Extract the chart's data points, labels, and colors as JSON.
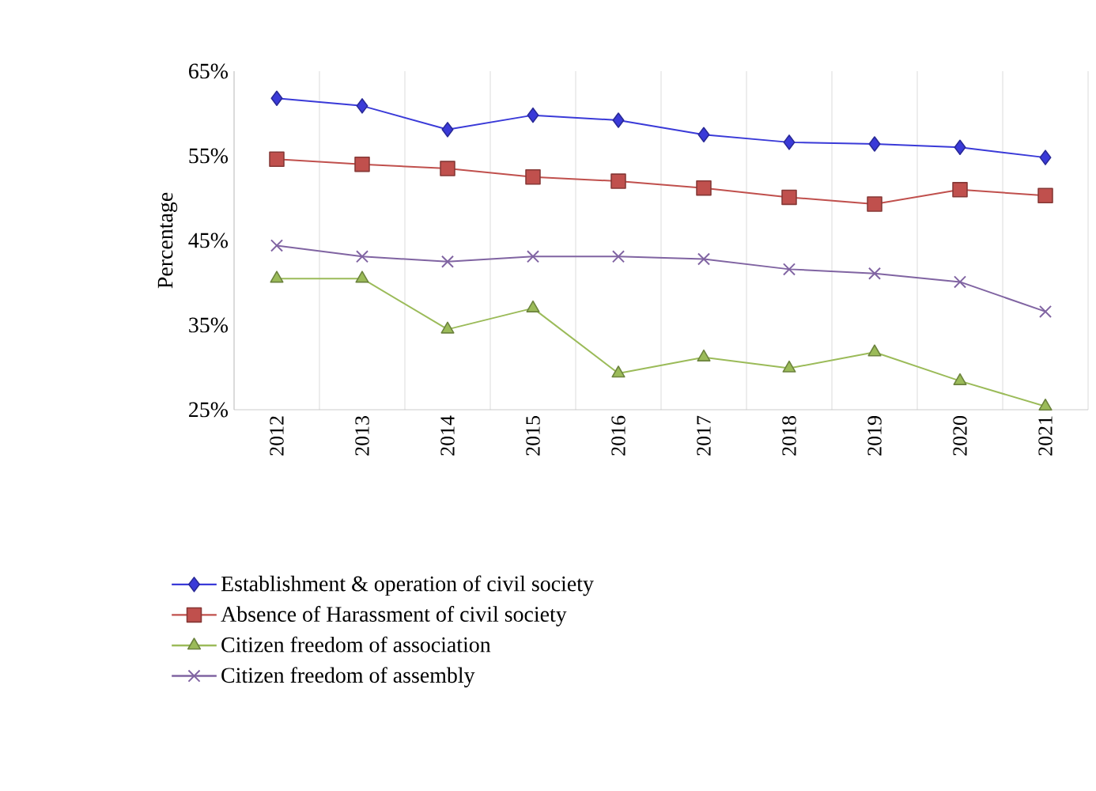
{
  "chart_data": {
    "type": "line",
    "ylabel": "Percentage",
    "categories": [
      "2012",
      "2013",
      "2014",
      "2015",
      "2016",
      "2017",
      "2018",
      "2019",
      "2020",
      "2021"
    ],
    "ylim": [
      25,
      65
    ],
    "yticks": [
      {
        "value": 25,
        "label": "25%"
      },
      {
        "value": 35,
        "label": "35%"
      },
      {
        "value": 45,
        "label": "45%"
      },
      {
        "value": 55,
        "label": "55%"
      },
      {
        "value": 65,
        "label": "65%"
      }
    ],
    "grid": "x",
    "legend": "bottom",
    "series": [
      {
        "name": "Establishment & operation of civil society",
        "color": "#3a3ad8",
        "marker": "diamond",
        "values": [
          61.8,
          60.9,
          58.1,
          59.8,
          59.2,
          57.5,
          56.6,
          56.4,
          56.0,
          54.8
        ]
      },
      {
        "name": "Absence of Harassment of civil society",
        "color": "#c0504d",
        "marker": "square",
        "values": [
          54.6,
          54.0,
          53.5,
          52.5,
          52.0,
          51.2,
          50.1,
          49.3,
          51.0,
          50.3
        ]
      },
      {
        "name": "Citizen freedom of association",
        "color": "#9bbb59",
        "marker": "triangle",
        "values": [
          40.5,
          40.5,
          34.5,
          37.0,
          29.3,
          31.2,
          29.9,
          31.8,
          28.4,
          25.4
        ]
      },
      {
        "name": "Citizen freedom of assembly",
        "color": "#8064a2",
        "marker": "cross",
        "values": [
          44.4,
          43.1,
          42.5,
          43.1,
          43.1,
          42.8,
          41.6,
          41.1,
          40.1,
          36.6
        ]
      }
    ]
  }
}
